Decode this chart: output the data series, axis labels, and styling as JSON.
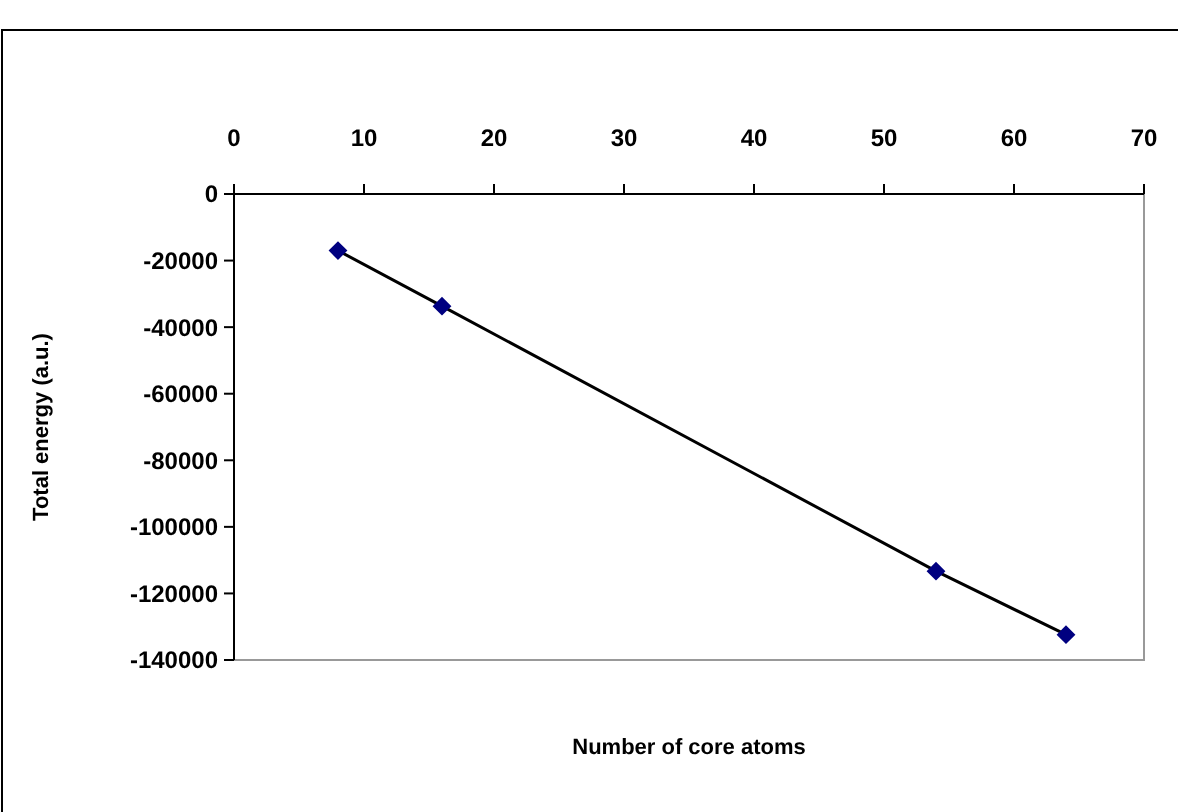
{
  "chart_data": {
    "type": "line",
    "xlabel": "Number of core atoms",
    "ylabel": "Total energy (a.u.)",
    "xlim": [
      0,
      70
    ],
    "xticks": [
      0,
      10,
      20,
      30,
      40,
      50,
      60,
      70
    ],
    "ylim": [
      -140000,
      0
    ],
    "yticks": [
      -140000,
      -120000,
      -100000,
      -80000,
      -60000,
      -40000,
      -20000,
      0
    ],
    "grid": false,
    "series": [
      {
        "color": "#000000",
        "marker": "none",
        "x": [
          8,
          16,
          54,
          64
        ],
        "values": [
          -17000,
          -33700,
          -113300,
          -132400
        ]
      },
      {
        "type": "scatter",
        "color": "#000080",
        "marker": "diamond",
        "x": [
          8,
          16,
          54,
          64
        ],
        "values": [
          -17000,
          -33700,
          -113300,
          -132400
        ]
      }
    ]
  }
}
